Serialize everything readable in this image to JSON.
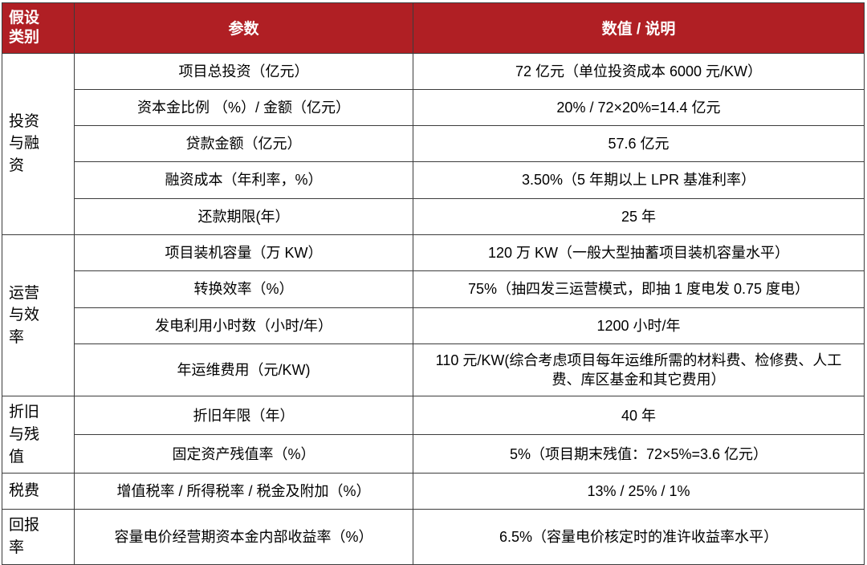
{
  "table": {
    "header": {
      "category": "假设\n类别",
      "param": "参数",
      "value": "数值 / 说明"
    },
    "accent_color": "#b01f24",
    "border_color": "#3c3c3c",
    "groups": [
      {
        "category": "投资\n与融\n资",
        "rows": [
          {
            "param": "项目总投资（亿元）",
            "value": "72 亿元（单位投资成本 6000 元/KW）"
          },
          {
            "param": "资本金比例 （%）/ 金额（亿元）",
            "value": "20% / 72×20%=14.4 亿元"
          },
          {
            "param": "贷款金额（亿元）",
            "value": "57.6 亿元"
          },
          {
            "param": "融资成本（年利率，%）",
            "value": "3.50%（5 年期以上 LPR 基准利率）"
          },
          {
            "param": "还款期限(年）",
            "value": "25 年"
          }
        ]
      },
      {
        "category": "运营\n与效\n率",
        "rows": [
          {
            "param": "项目装机容量（万 KW）",
            "value": "120 万 KW（一般大型抽蓄项目装机容量水平）"
          },
          {
            "param": "转换效率（%）",
            "value": "75%（抽四发三运营模式，即抽 1 度电发 0.75 度电）"
          },
          {
            "param": "发电利用小时数（小时/年）",
            "value": "1200 小时/年"
          },
          {
            "param": "年运维费用（元/KW)",
            "value": "110 元/KW(综合考虑项目每年运维所需的材料费、检修费、人工费、库区基金和其它费用）"
          }
        ]
      },
      {
        "category": "折旧\n与残\n值",
        "rows": [
          {
            "param": "折旧年限（年）",
            "value": "40 年"
          },
          {
            "param": "固定资产残值率（%）",
            "value": "5%（项目期末残值：72×5%=3.6 亿元）"
          }
        ]
      },
      {
        "category": "税费",
        "rows": [
          {
            "param": "增值税率 / 所得税率 / 税金及附加（%）",
            "value": "13% / 25% / 1%"
          }
        ]
      },
      {
        "category": "回报\n率",
        "rows": [
          {
            "param": "容量电价经营期资本金内部收益率（%）",
            "value": "6.5%（容量电价核定时的准许收益率水平）"
          }
        ]
      }
    ]
  }
}
